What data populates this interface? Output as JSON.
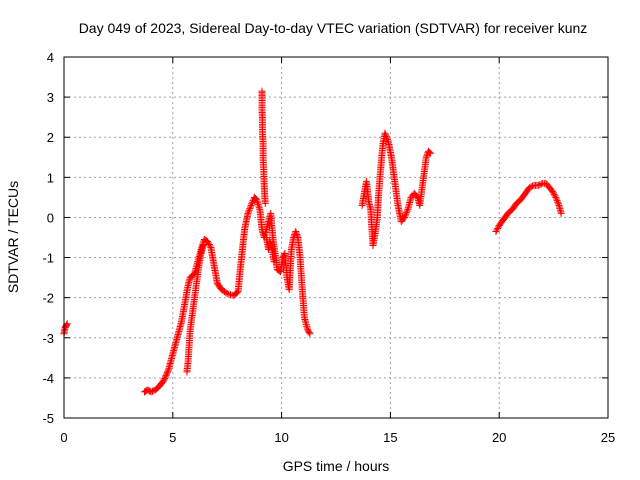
{
  "chart_data": {
    "type": "scatter",
    "title": "Day 049 of 2023, Sidereal Day-to-day VTEC variation (SDTVAR) for receiver kunz",
    "xlabel": "GPS time / hours",
    "ylabel": "SDTVAR / TECUs",
    "xlim": [
      0,
      25
    ],
    "ylim": [
      -5,
      4
    ],
    "x_ticks": [
      0,
      5,
      10,
      15,
      20,
      25
    ],
    "y_ticks": [
      -5,
      -4,
      -3,
      -2,
      -1,
      0,
      1,
      2,
      3,
      4
    ],
    "x_tick_labels": [
      "0",
      "5",
      "10",
      "15",
      "20",
      "25"
    ],
    "y_tick_labels": [
      "-5",
      "-4",
      "-3",
      "-2",
      "-1",
      "0",
      "1",
      "2",
      "3",
      "4"
    ],
    "grid": true,
    "marker": "+",
    "marker_color": "#ff0000",
    "series": [
      {
        "name": "SDTVAR",
        "segments": [
          [
            [
              0.0,
              -2.9
            ],
            [
              0.05,
              -2.75
            ],
            [
              0.1,
              -2.7
            ],
            [
              0.15,
              -2.65
            ]
          ],
          [
            [
              3.7,
              -4.35
            ],
            [
              3.85,
              -4.3
            ],
            [
              4.0,
              -4.35
            ],
            [
              4.2,
              -4.3
            ],
            [
              4.4,
              -4.2
            ],
            [
              4.6,
              -4.05
            ],
            [
              4.8,
              -3.8
            ],
            [
              5.0,
              -3.4
            ],
            [
              5.2,
              -3.0
            ],
            [
              5.4,
              -2.6
            ],
            [
              5.6,
              -2.0
            ],
            [
              5.7,
              -1.7
            ],
            [
              5.8,
              -1.5
            ],
            [
              6.0,
              -1.4
            ],
            [
              6.15,
              -1.1
            ],
            [
              6.3,
              -0.8
            ],
            [
              6.45,
              -0.55
            ],
            [
              6.6,
              -0.6
            ],
            [
              6.75,
              -0.75
            ],
            [
              6.9,
              -1.2
            ],
            [
              7.05,
              -1.65
            ],
            [
              7.25,
              -1.8
            ],
            [
              7.5,
              -1.9
            ],
            [
              7.8,
              -1.95
            ],
            [
              8.0,
              -1.85
            ],
            [
              8.1,
              -1.3
            ],
            [
              8.2,
              -0.8
            ],
            [
              8.3,
              -0.3
            ],
            [
              8.45,
              0.1
            ],
            [
              8.6,
              0.3
            ],
            [
              8.75,
              0.5
            ],
            [
              8.85,
              0.45
            ],
            [
              9.0,
              0.2
            ],
            [
              9.1,
              -0.3
            ],
            [
              9.2,
              -0.5
            ],
            [
              9.3,
              -0.3
            ],
            [
              9.4,
              -0.1
            ],
            [
              9.5,
              0.1
            ],
            [
              9.6,
              -0.5
            ],
            [
              9.7,
              -0.9
            ],
            [
              9.8,
              -1.3
            ],
            [
              9.95,
              -1.35
            ],
            [
              10.05,
              -1.0
            ],
            [
              10.15,
              -0.9
            ],
            [
              10.25,
              -1.5
            ],
            [
              10.35,
              -1.8
            ],
            [
              10.45,
              -0.8
            ],
            [
              10.55,
              -0.5
            ],
            [
              10.65,
              -0.35
            ],
            [
              10.75,
              -0.5
            ],
            [
              10.85,
              -1.0
            ],
            [
              10.95,
              -1.8
            ],
            [
              11.05,
              -2.5
            ],
            [
              11.2,
              -2.8
            ],
            [
              11.3,
              -2.9
            ]
          ],
          [
            [
              5.65,
              -3.85
            ],
            [
              5.7,
              -3.6
            ],
            [
              5.75,
              -3.2
            ],
            [
              5.8,
              -2.8
            ],
            [
              5.9,
              -2.4
            ],
            [
              6.0,
              -2.0
            ],
            [
              6.1,
              -1.6
            ],
            [
              6.2,
              -1.2
            ],
            [
              6.3,
              -0.9
            ],
            [
              6.4,
              -0.7
            ]
          ],
          [
            [
              9.1,
              3.15
            ],
            [
              9.1,
              3.0
            ],
            [
              9.1,
              2.7
            ],
            [
              9.12,
              2.45
            ],
            [
              9.12,
              2.15
            ],
            [
              9.15,
              1.85
            ],
            [
              9.15,
              1.5
            ],
            [
              9.18,
              1.15
            ],
            [
              9.2,
              0.85
            ],
            [
              9.22,
              0.6
            ],
            [
              9.25,
              0.35
            ]
          ],
          [
            [
              9.3,
              -0.5
            ],
            [
              9.4,
              -0.8
            ],
            [
              9.45,
              -0.6
            ],
            [
              9.55,
              -0.7
            ],
            [
              9.65,
              -1.1
            ]
          ],
          [
            [
              13.7,
              0.3
            ],
            [
              13.8,
              0.6
            ],
            [
              13.9,
              0.9
            ],
            [
              14.0,
              0.4
            ],
            [
              14.1,
              0.2
            ],
            [
              14.15,
              -0.3
            ],
            [
              14.2,
              -0.7
            ],
            [
              14.3,
              -0.4
            ],
            [
              14.4,
              0.0
            ],
            [
              14.45,
              0.5
            ],
            [
              14.55,
              1.2
            ],
            [
              14.65,
              1.8
            ],
            [
              14.75,
              2.1
            ],
            [
              14.9,
              1.9
            ],
            [
              15.05,
              1.5
            ],
            [
              15.2,
              0.9
            ],
            [
              15.35,
              0.3
            ],
            [
              15.5,
              -0.1
            ],
            [
              15.65,
              0.0
            ],
            [
              15.8,
              0.2
            ],
            [
              15.95,
              0.5
            ],
            [
              16.1,
              0.6
            ],
            [
              16.25,
              0.5
            ],
            [
              16.35,
              0.3
            ],
            [
              16.45,
              0.7
            ],
            [
              16.55,
              1.1
            ],
            [
              16.65,
              1.5
            ],
            [
              16.75,
              1.65
            ],
            [
              16.85,
              1.6
            ]
          ],
          [
            [
              19.85,
              -0.35
            ],
            [
              20.0,
              -0.2
            ],
            [
              20.2,
              -0.05
            ],
            [
              20.4,
              0.1
            ],
            [
              20.6,
              0.2
            ],
            [
              20.8,
              0.35
            ],
            [
              21.0,
              0.45
            ],
            [
              21.2,
              0.6
            ],
            [
              21.4,
              0.75
            ],
            [
              21.6,
              0.8
            ],
            [
              21.8,
              0.8
            ],
            [
              22.0,
              0.85
            ],
            [
              22.15,
              0.85
            ],
            [
              22.3,
              0.75
            ],
            [
              22.45,
              0.65
            ],
            [
              22.6,
              0.5
            ],
            [
              22.75,
              0.3
            ],
            [
              22.85,
              0.1
            ]
          ]
        ]
      }
    ]
  }
}
